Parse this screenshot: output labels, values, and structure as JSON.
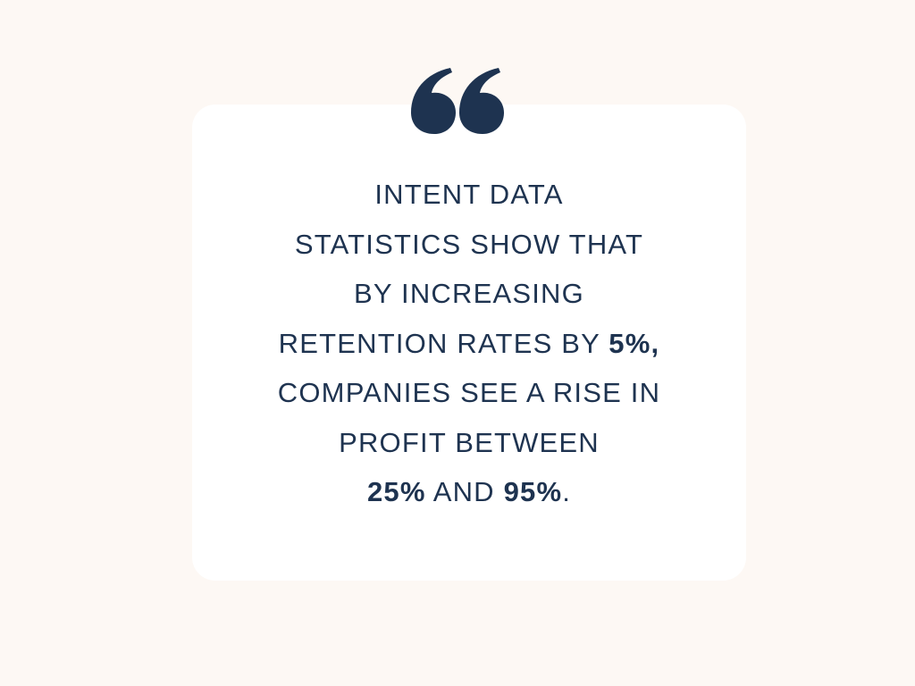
{
  "quote": {
    "lines": [
      [
        {
          "text": "INTENT DATA",
          "bold": false
        }
      ],
      [
        {
          "text": "STATISTICS SHOW THAT",
          "bold": false
        }
      ],
      [
        {
          "text": "BY INCREASING",
          "bold": false
        }
      ],
      [
        {
          "text": "RETENTION RATES BY ",
          "bold": false
        },
        {
          "text": "5%,",
          "bold": true
        }
      ],
      [
        {
          "text": "COMPANIES SEE A RISE IN",
          "bold": false
        }
      ],
      [
        {
          "text": "PROFIT BETWEEN",
          "bold": false
        }
      ],
      [
        {
          "text": "25%",
          "bold": true
        },
        {
          "text": " AND ",
          "bold": false
        },
        {
          "text": "95%",
          "bold": true
        },
        {
          "text": ".",
          "bold": false
        }
      ]
    ]
  }
}
